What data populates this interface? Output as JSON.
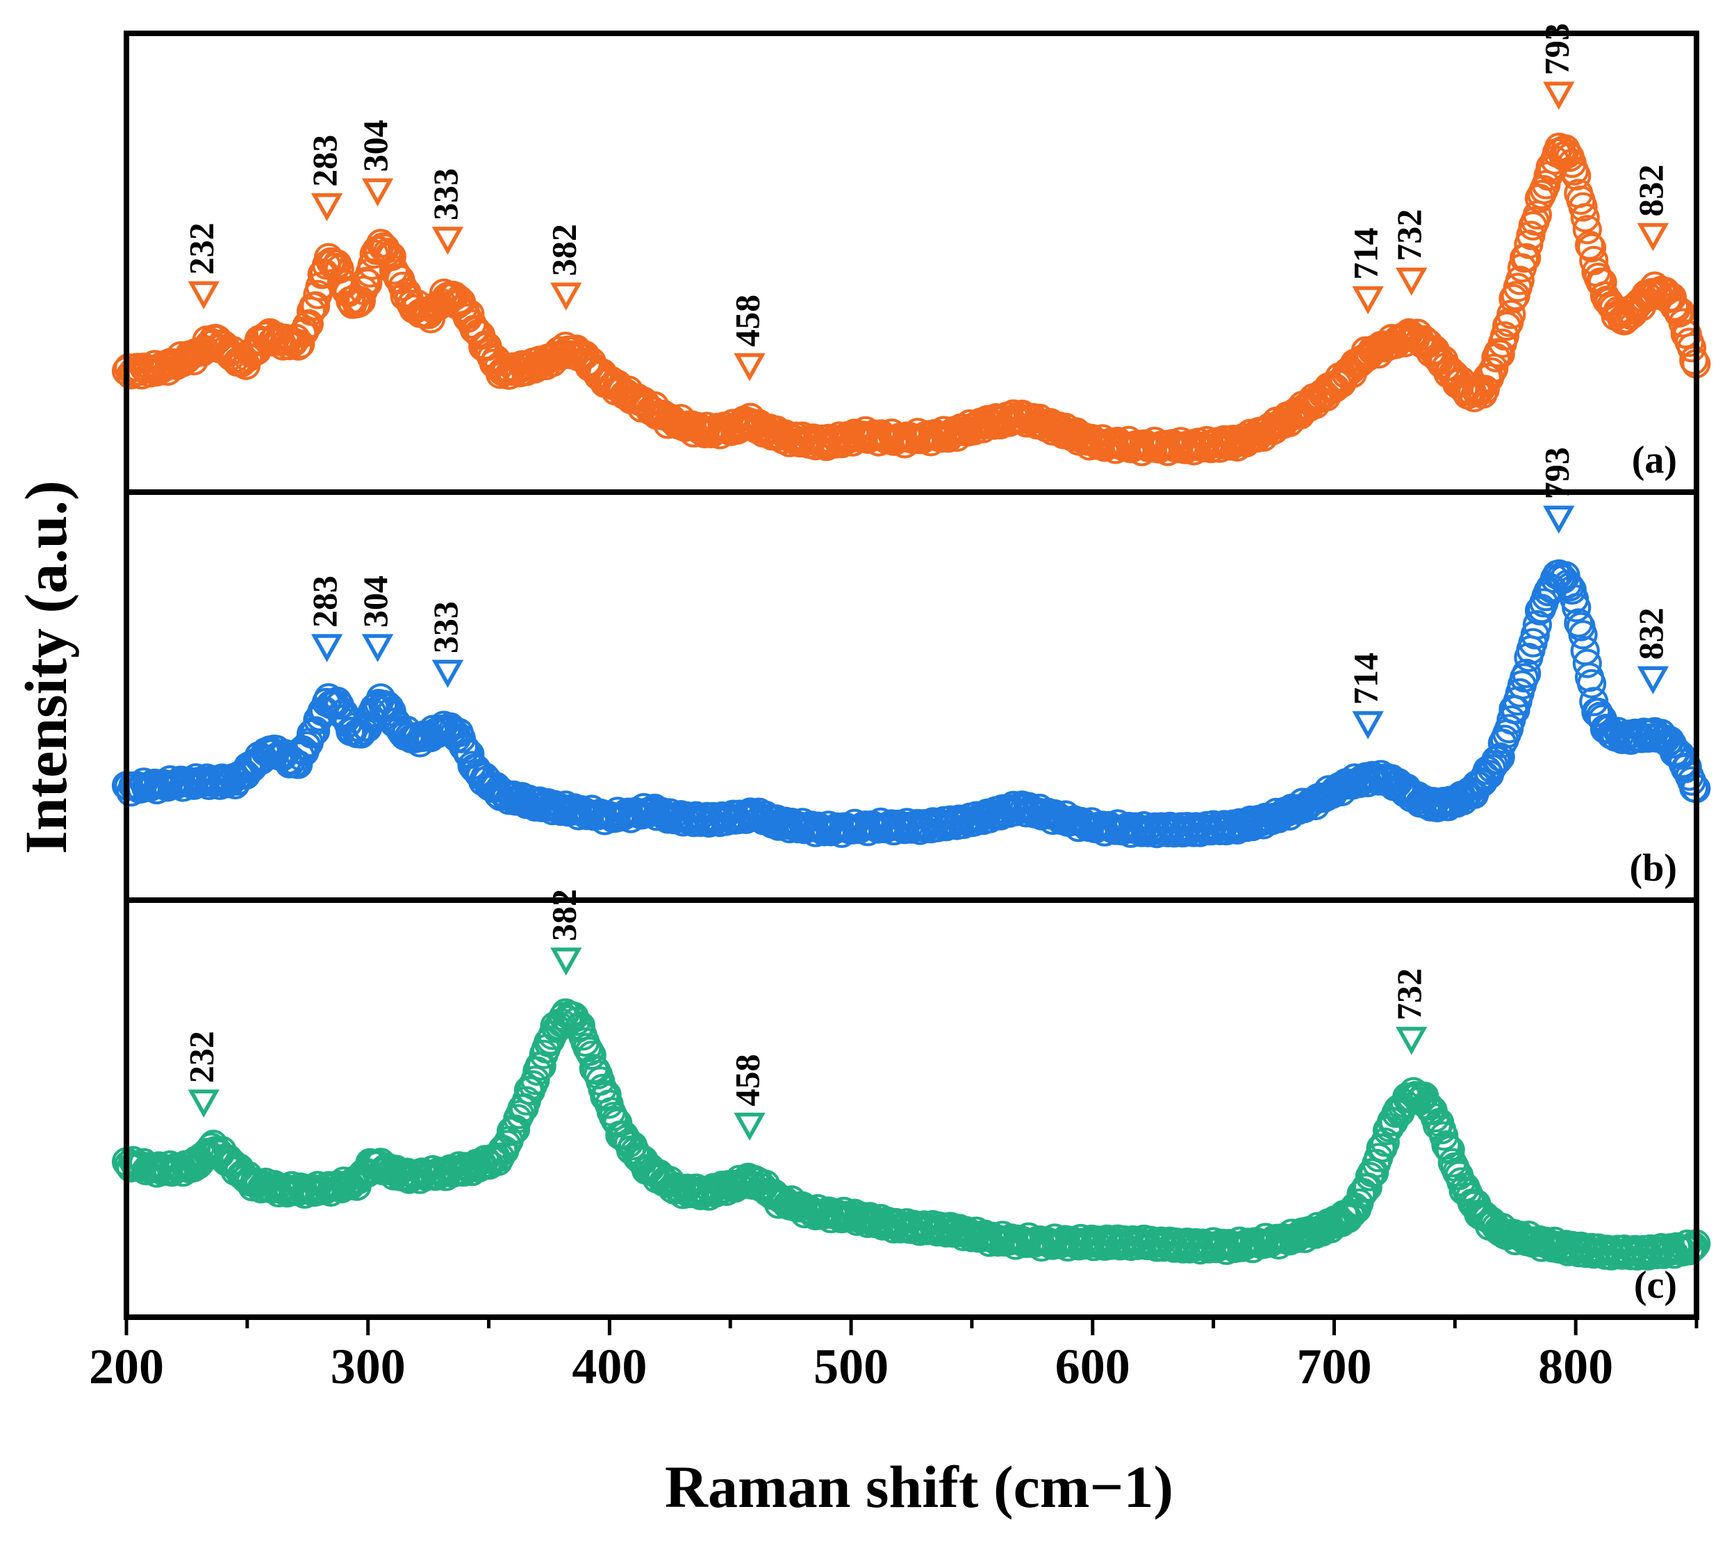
{
  "chart_data": {
    "type": "scatter",
    "xlabel": "Raman shift (cm−1)",
    "ylabel": "Intensity (a.u.)",
    "xlim": [
      200,
      850
    ],
    "x_ticks": [
      "200",
      "300",
      "400",
      "500",
      "600",
      "700",
      "800"
    ],
    "x_tick_values": [
      200,
      300,
      400,
      500,
      600,
      700,
      800
    ],
    "y_ticks": "none (arbitrary units)",
    "marker": "open circle",
    "panels": [
      {
        "panel_label": "(a)",
        "name": "a",
        "color": "#F26B21",
        "ylim": [
          0,
          1
        ],
        "peaks": [
          {
            "x": 232,
            "label": "232"
          },
          {
            "x": 283,
            "label": "283"
          },
          {
            "x": 304,
            "label": "304"
          },
          {
            "x": 333,
            "label": "333"
          },
          {
            "x": 382,
            "label": "382"
          },
          {
            "x": 458,
            "label": "458"
          },
          {
            "x": 714,
            "label": "714"
          },
          {
            "x": 732,
            "label": "732"
          },
          {
            "x": 793,
            "label": "793"
          },
          {
            "x": 832,
            "label": "832"
          }
        ],
        "profile": [
          [
            200,
            0.22
          ],
          [
            215,
            0.23
          ],
          [
            230,
            0.27
          ],
          [
            236,
            0.31
          ],
          [
            240,
            0.29
          ],
          [
            248,
            0.24
          ],
          [
            252,
            0.27
          ],
          [
            258,
            0.32
          ],
          [
            265,
            0.3
          ],
          [
            272,
            0.3
          ],
          [
            278,
            0.4
          ],
          [
            283,
            0.52
          ],
          [
            287,
            0.51
          ],
          [
            292,
            0.42
          ],
          [
            296,
            0.4
          ],
          [
            300,
            0.47
          ],
          [
            304,
            0.56
          ],
          [
            308,
            0.55
          ],
          [
            312,
            0.48
          ],
          [
            318,
            0.4
          ],
          [
            325,
            0.37
          ],
          [
            333,
            0.43
          ],
          [
            338,
            0.41
          ],
          [
            345,
            0.33
          ],
          [
            355,
            0.22
          ],
          [
            365,
            0.23
          ],
          [
            375,
            0.25
          ],
          [
            382,
            0.28
          ],
          [
            388,
            0.27
          ],
          [
            398,
            0.2
          ],
          [
            410,
            0.15
          ],
          [
            425,
            0.09
          ],
          [
            440,
            0.06
          ],
          [
            452,
            0.07
          ],
          [
            458,
            0.09
          ],
          [
            462,
            0.07
          ],
          [
            475,
            0.04
          ],
          [
            490,
            0.03
          ],
          [
            505,
            0.05
          ],
          [
            520,
            0.04
          ],
          [
            540,
            0.05
          ],
          [
            555,
            0.08
          ],
          [
            570,
            0.1
          ],
          [
            585,
            0.07
          ],
          [
            600,
            0.03
          ],
          [
            620,
            0.02
          ],
          [
            640,
            0.02
          ],
          [
            660,
            0.03
          ],
          [
            672,
            0.06
          ],
          [
            685,
            0.11
          ],
          [
            700,
            0.18
          ],
          [
            714,
            0.27
          ],
          [
            725,
            0.3
          ],
          [
            732,
            0.32
          ],
          [
            738,
            0.3
          ],
          [
            748,
            0.22
          ],
          [
            756,
            0.16
          ],
          [
            762,
            0.17
          ],
          [
            770,
            0.3
          ],
          [
            778,
            0.5
          ],
          [
            786,
            0.7
          ],
          [
            793,
            0.82
          ],
          [
            798,
            0.8
          ],
          [
            803,
            0.66
          ],
          [
            808,
            0.5
          ],
          [
            814,
            0.4
          ],
          [
            820,
            0.36
          ],
          [
            826,
            0.4
          ],
          [
            832,
            0.44
          ],
          [
            838,
            0.43
          ],
          [
            843,
            0.38
          ],
          [
            850,
            0.24
          ]
        ]
      },
      {
        "panel_label": "(b)",
        "name": "b",
        "color": "#1F7BE0",
        "ylim": [
          0,
          1
        ],
        "peaks": [
          {
            "x": 283,
            "label": "283"
          },
          {
            "x": 304,
            "label": "304"
          },
          {
            "x": 333,
            "label": "333"
          },
          {
            "x": 714,
            "label": "714"
          },
          {
            "x": 793,
            "label": "793"
          },
          {
            "x": 832,
            "label": "832"
          }
        ],
        "profile": [
          [
            200,
            0.23
          ],
          [
            215,
            0.24
          ],
          [
            230,
            0.25
          ],
          [
            245,
            0.25
          ],
          [
            252,
            0.3
          ],
          [
            260,
            0.35
          ],
          [
            265,
            0.33
          ],
          [
            270,
            0.3
          ],
          [
            276,
            0.38
          ],
          [
            283,
            0.5
          ],
          [
            288,
            0.49
          ],
          [
            293,
            0.41
          ],
          [
            298,
            0.4
          ],
          [
            304,
            0.5
          ],
          [
            308,
            0.49
          ],
          [
            313,
            0.41
          ],
          [
            320,
            0.38
          ],
          [
            327,
            0.4
          ],
          [
            333,
            0.42
          ],
          [
            338,
            0.39
          ],
          [
            345,
            0.28
          ],
          [
            355,
            0.21
          ],
          [
            370,
            0.18
          ],
          [
            385,
            0.16
          ],
          [
            400,
            0.14
          ],
          [
            410,
            0.15
          ],
          [
            418,
            0.16
          ],
          [
            425,
            0.14
          ],
          [
            440,
            0.13
          ],
          [
            455,
            0.14
          ],
          [
            460,
            0.15
          ],
          [
            470,
            0.12
          ],
          [
            490,
            0.1
          ],
          [
            510,
            0.11
          ],
          [
            530,
            0.11
          ],
          [
            550,
            0.13
          ],
          [
            570,
            0.17
          ],
          [
            585,
            0.14
          ],
          [
            600,
            0.11
          ],
          [
            620,
            0.1
          ],
          [
            640,
            0.1
          ],
          [
            660,
            0.11
          ],
          [
            672,
            0.13
          ],
          [
            690,
            0.18
          ],
          [
            705,
            0.24
          ],
          [
            714,
            0.26
          ],
          [
            722,
            0.26
          ],
          [
            730,
            0.22
          ],
          [
            738,
            0.18
          ],
          [
            748,
            0.18
          ],
          [
            758,
            0.22
          ],
          [
            768,
            0.32
          ],
          [
            778,
            0.55
          ],
          [
            786,
            0.8
          ],
          [
            793,
            0.9
          ],
          [
            798,
            0.86
          ],
          [
            803,
            0.7
          ],
          [
            808,
            0.48
          ],
          [
            814,
            0.4
          ],
          [
            820,
            0.39
          ],
          [
            826,
            0.39
          ],
          [
            832,
            0.4
          ],
          [
            838,
            0.38
          ],
          [
            844,
            0.32
          ],
          [
            850,
            0.22
          ]
        ]
      },
      {
        "panel_label": "(c)",
        "name": "c",
        "color": "#22B083",
        "ylim": [
          0,
          1
        ],
        "peaks": [
          {
            "x": 232,
            "label": "232"
          },
          {
            "x": 382,
            "label": "382"
          },
          {
            "x": 458,
            "label": "458"
          },
          {
            "x": 732,
            "label": "732"
          }
        ],
        "profile": [
          [
            200,
            0.35
          ],
          [
            215,
            0.33
          ],
          [
            228,
            0.34
          ],
          [
            236,
            0.4
          ],
          [
            242,
            0.36
          ],
          [
            252,
            0.29
          ],
          [
            265,
            0.27
          ],
          [
            280,
            0.27
          ],
          [
            295,
            0.29
          ],
          [
            302,
            0.35
          ],
          [
            306,
            0.34
          ],
          [
            315,
            0.31
          ],
          [
            330,
            0.32
          ],
          [
            345,
            0.34
          ],
          [
            355,
            0.37
          ],
          [
            362,
            0.48
          ],
          [
            370,
            0.62
          ],
          [
            376,
            0.74
          ],
          [
            382,
            0.8
          ],
          [
            386,
            0.79
          ],
          [
            390,
            0.72
          ],
          [
            396,
            0.6
          ],
          [
            404,
            0.45
          ],
          [
            415,
            0.34
          ],
          [
            428,
            0.27
          ],
          [
            440,
            0.26
          ],
          [
            450,
            0.28
          ],
          [
            458,
            0.3
          ],
          [
            462,
            0.29
          ],
          [
            470,
            0.24
          ],
          [
            485,
            0.2
          ],
          [
            500,
            0.19
          ],
          [
            520,
            0.16
          ],
          [
            540,
            0.15
          ],
          [
            560,
            0.12
          ],
          [
            580,
            0.11
          ],
          [
            600,
            0.11
          ],
          [
            620,
            0.11
          ],
          [
            640,
            0.1
          ],
          [
            660,
            0.1
          ],
          [
            680,
            0.12
          ],
          [
            695,
            0.15
          ],
          [
            708,
            0.2
          ],
          [
            716,
            0.32
          ],
          [
            724,
            0.48
          ],
          [
            732,
            0.56
          ],
          [
            738,
            0.54
          ],
          [
            744,
            0.46
          ],
          [
            752,
            0.3
          ],
          [
            760,
            0.2
          ],
          [
            770,
            0.14
          ],
          [
            785,
            0.11
          ],
          [
            800,
            0.09
          ],
          [
            815,
            0.08
          ],
          [
            830,
            0.08
          ],
          [
            845,
            0.09
          ],
          [
            850,
            0.1
          ]
        ]
      }
    ]
  }
}
